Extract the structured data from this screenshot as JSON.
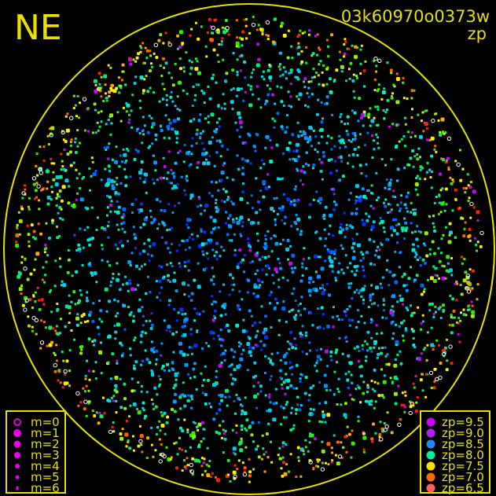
{
  "header": {
    "direction": "NE",
    "title": "03k60970o0373w",
    "subtitle": "zp"
  },
  "colors": {
    "frame": "#e8e000",
    "background": "#000000",
    "saturated": "#ffffff"
  },
  "magnitude_legend": [
    {
      "label": "m=0",
      "hollow": true
    },
    {
      "label": "m=1"
    },
    {
      "label": "m=2"
    },
    {
      "label": "m=3"
    },
    {
      "label": "m=4"
    },
    {
      "label": "m=5"
    },
    {
      "label": "m=6"
    }
  ],
  "zp_legend": [
    {
      "label": "zp=9.5",
      "color": "#cc00ff"
    },
    {
      "label": "zp=9.0",
      "color": "#b020f0"
    },
    {
      "label": "zp=8.5",
      "color": "#2288ff"
    },
    {
      "label": "zp=8.0",
      "color": "#00ee99"
    },
    {
      "label": "zp=7.5",
      "color": "#ffdd00"
    },
    {
      "label": "zp=7.0",
      "color": "#ff6a10"
    },
    {
      "label": "zp=6.5",
      "color": "#ff6060"
    }
  ],
  "chart_data": {
    "type": "scatter",
    "title": "03k60970o0373w",
    "subtitle": "zp",
    "color_encoding": "zp",
    "size_encoding": "magnitude",
    "palette": [
      "#0033ff",
      "#0066ff",
      "#0099ff",
      "#00ccee",
      "#00eecc",
      "#00ee77",
      "#33ee00",
      "#99ee00",
      "#ffee00",
      "#ffaa00",
      "#ff6600",
      "#ff2200",
      "#cc00ff"
    ],
    "legend_placement": [
      "bottom-left",
      "bottom-right"
    ],
    "grid": false
  }
}
